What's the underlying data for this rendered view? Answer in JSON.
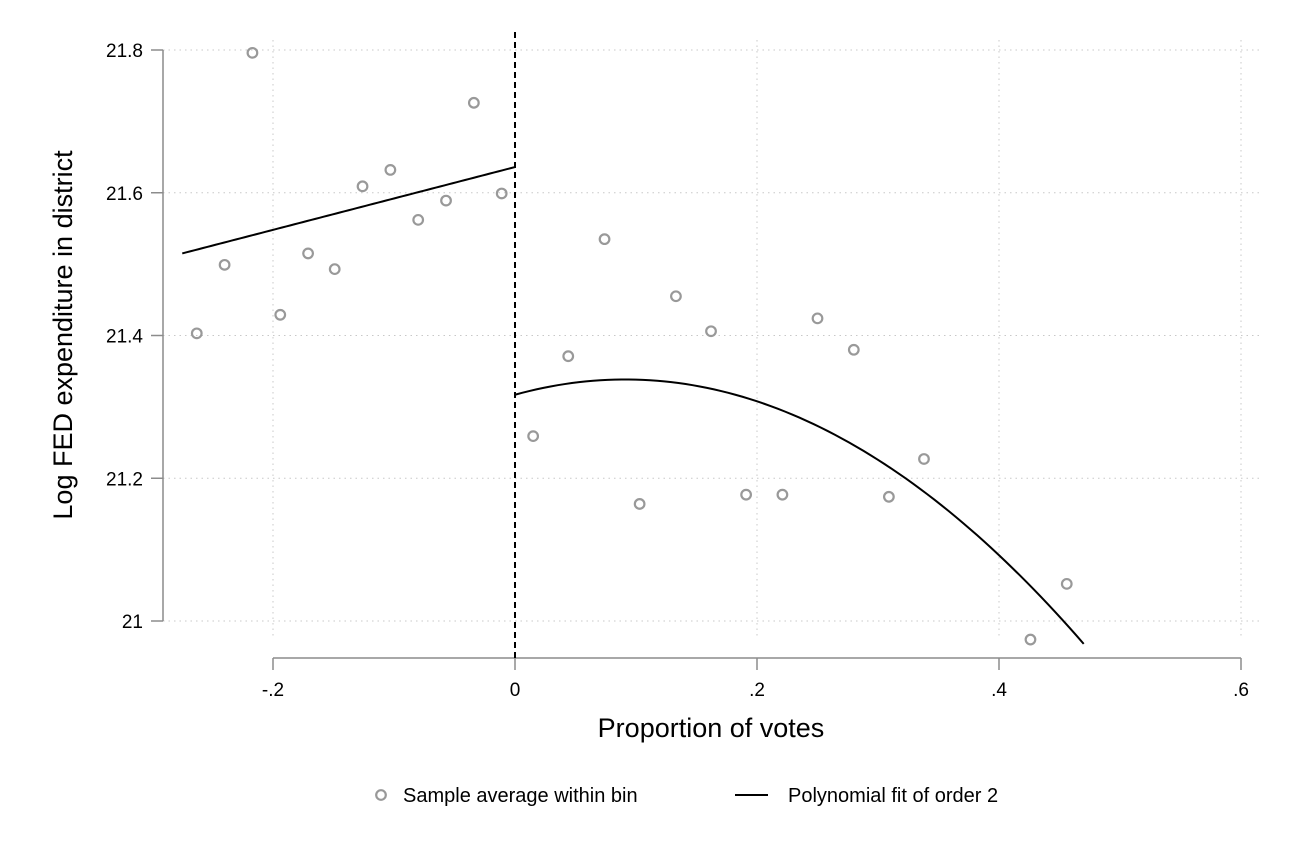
{
  "chart_data": {
    "type": "scatter",
    "title": "",
    "xlabel": "Proportion of votes",
    "ylabel": "Log FED expenditure in district",
    "xlim": [
      -0.3,
      0.6
    ],
    "ylim": [
      21.0,
      21.8
    ],
    "x_ticks": [
      -0.2,
      0,
      0.2,
      0.4,
      0.6
    ],
    "x_tick_labels": [
      "-.2",
      "0",
      ".2",
      ".4",
      ".6"
    ],
    "y_ticks": [
      21.0,
      21.2,
      21.4,
      21.6,
      21.8
    ],
    "y_tick_labels": [
      "21",
      "21.2",
      "21.4",
      "21.6",
      "21.8"
    ],
    "grid": true,
    "cutoff": 0,
    "legend_position": "bottom",
    "series": [
      {
        "name": "Sample average within bin",
        "kind": "scatter",
        "color": "#999999",
        "points": [
          {
            "x": -0.263,
            "y": 21.403
          },
          {
            "x": -0.24,
            "y": 21.499
          },
          {
            "x": -0.217,
            "y": 21.796
          },
          {
            "x": -0.194,
            "y": 21.429
          },
          {
            "x": -0.171,
            "y": 21.515
          },
          {
            "x": -0.149,
            "y": 21.493
          },
          {
            "x": -0.126,
            "y": 21.609
          },
          {
            "x": -0.103,
            "y": 21.632
          },
          {
            "x": -0.08,
            "y": 21.562
          },
          {
            "x": -0.057,
            "y": 21.589
          },
          {
            "x": -0.034,
            "y": 21.726
          },
          {
            "x": -0.011,
            "y": 21.599
          },
          {
            "x": 0.015,
            "y": 21.259
          },
          {
            "x": 0.044,
            "y": 21.371
          },
          {
            "x": 0.074,
            "y": 21.535
          },
          {
            "x": 0.103,
            "y": 21.164
          },
          {
            "x": 0.133,
            "y": 21.455
          },
          {
            "x": 0.162,
            "y": 21.406
          },
          {
            "x": 0.191,
            "y": 21.177
          },
          {
            "x": 0.221,
            "y": 21.177
          },
          {
            "x": 0.25,
            "y": 21.424
          },
          {
            "x": 0.28,
            "y": 21.38
          },
          {
            "x": 0.309,
            "y": 21.174
          },
          {
            "x": 0.338,
            "y": 21.227
          },
          {
            "x": 0.426,
            "y": 20.974
          },
          {
            "x": 0.456,
            "y": 21.052
          }
        ]
      },
      {
        "name": "Polynomial fit of order 2",
        "kind": "line",
        "color": "#000000",
        "segments": [
          {
            "x0": -0.275,
            "x1": 0,
            "coef": [
              21.636,
              0.44,
              0.0
            ]
          },
          {
            "x0": 0,
            "x1": 0.47,
            "coef": [
              21.317,
              0.47,
              -2.58
            ]
          }
        ]
      }
    ]
  }
}
